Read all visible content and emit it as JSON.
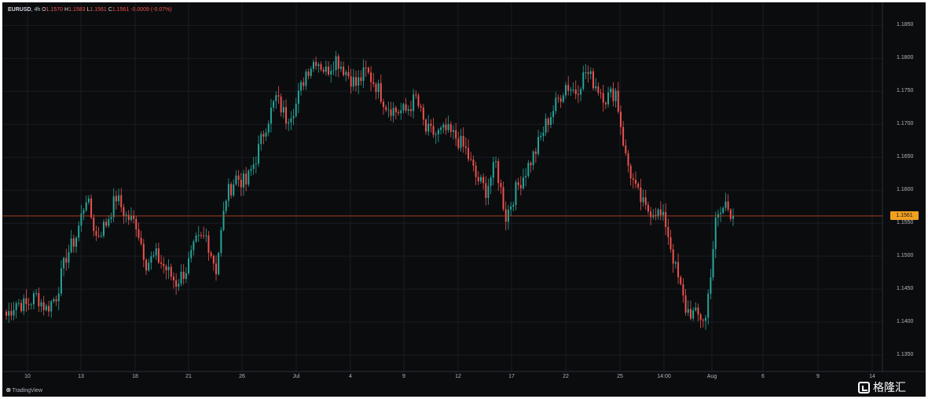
{
  "legend": {
    "symbol": "EURUSD",
    "interval": "4h",
    "o_label": "O",
    "o_value": "1.1570",
    "h_label": "H",
    "h_value": "1.1583",
    "l_label": "L",
    "l_value": "1.1561",
    "c_label": "C",
    "c_value": "1.1561",
    "change": "-0.0009 (-0.07%)"
  },
  "branding": {
    "logo": "⭙",
    "name": "TradingView"
  },
  "watermark": {
    "text": "格隆汇"
  },
  "colors": {
    "up": "#26a69a",
    "down": "#ef5350",
    "background": "#0b0c0e",
    "grid": "#1a1d24",
    "price_line": "#b5452a",
    "price_tag": "#f0a020"
  },
  "chart_data": {
    "type": "candlestick",
    "symbol": "EURUSD",
    "interval": "4h",
    "current_price": "1.1561",
    "ylim": [
      1.1325,
      1.1885
    ],
    "y_ticks": [
      "1.1850",
      "1.1800",
      "1.1750",
      "1.1700",
      "1.1650",
      "1.1600",
      "1.1550",
      "1.1500",
      "1.1450",
      "1.1400",
      "1.1350"
    ],
    "x_ticks": [
      "10",
      "13",
      "18",
      "21",
      "26",
      "Jul",
      "4",
      "9",
      "12",
      "17",
      "22",
      "25",
      "14:00",
      "Aug",
      "6",
      "9",
      "14"
    ],
    "close_path": [
      [
        0,
        1.141
      ],
      [
        4,
        1.143
      ],
      [
        8,
        1.1425
      ],
      [
        12,
        1.144
      ],
      [
        16,
        1.142
      ],
      [
        20,
        1.144
      ],
      [
        24,
        1.15
      ],
      [
        28,
        1.153
      ],
      [
        32,
        1.159
      ],
      [
        36,
        1.153
      ],
      [
        40,
        1.155
      ],
      [
        44,
        1.159
      ],
      [
        48,
        1.156
      ],
      [
        52,
        1.155
      ],
      [
        56,
        1.149
      ],
      [
        60,
        1.15
      ],
      [
        64,
        1.148
      ],
      [
        68,
        1.146
      ],
      [
        72,
        1.148
      ],
      [
        76,
        1.152
      ],
      [
        80,
        1.153
      ],
      [
        84,
        1.148
      ],
      [
        88,
        1.159
      ],
      [
        92,
        1.162
      ],
      [
        96,
        1.161
      ],
      [
        100,
        1.165
      ],
      [
        104,
        1.17
      ],
      [
        108,
        1.174
      ],
      [
        112,
        1.171
      ],
      [
        116,
        1.173
      ],
      [
        120,
        1.178
      ],
      [
        124,
        1.18
      ],
      [
        128,
        1.178
      ],
      [
        132,
        1.18
      ],
      [
        136,
        1.178
      ],
      [
        140,
        1.176
      ],
      [
        144,
        1.178
      ],
      [
        148,
        1.176
      ],
      [
        152,
        1.173
      ],
      [
        156,
        1.172
      ],
      [
        160,
        1.172
      ],
      [
        164,
        1.174
      ],
      [
        168,
        1.169
      ],
      [
        172,
        1.1685
      ],
      [
        176,
        1.169
      ],
      [
        180,
        1.168
      ],
      [
        184,
        1.166
      ],
      [
        188,
        1.162
      ],
      [
        192,
        1.16
      ],
      [
        196,
        1.164
      ],
      [
        200,
        1.156
      ],
      [
        204,
        1.16
      ],
      [
        208,
        1.163
      ],
      [
        212,
        1.166
      ],
      [
        216,
        1.17
      ],
      [
        220,
        1.173
      ],
      [
        224,
        1.176
      ],
      [
        228,
        1.175
      ],
      [
        232,
        1.178
      ],
      [
        236,
        1.176
      ],
      [
        240,
        1.174
      ],
      [
        244,
        1.175
      ],
      [
        248,
        1.165
      ],
      [
        252,
        1.16
      ],
      [
        256,
        1.157
      ],
      [
        260,
        1.157
      ],
      [
        264,
        1.155
      ],
      [
        268,
        1.148
      ],
      [
        272,
        1.142
      ],
      [
        276,
        1.141
      ],
      [
        280,
        1.1405
      ],
      [
        284,
        1.155
      ],
      [
        288,
        1.158
      ],
      [
        291,
        1.1561
      ]
    ]
  }
}
